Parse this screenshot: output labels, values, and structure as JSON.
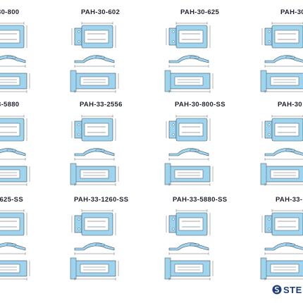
{
  "sheet": {
    "accent_color": "#9fd4ef",
    "line_color": "#3b4a5c",
    "titles": [
      "30-800",
      "PAH-30-602",
      "PAH-30-625",
      "PAH-30-",
      "3-5880",
      "PAH-33-2556",
      "PAH-30-800-SS",
      "PAH-30",
      "-625-SS",
      "PAH-33-1260-SS",
      "PAH-33-5880-SS",
      "PAH-33-"
    ]
  },
  "logo": {
    "text": "STE",
    "icon": "company-logo-icon"
  }
}
